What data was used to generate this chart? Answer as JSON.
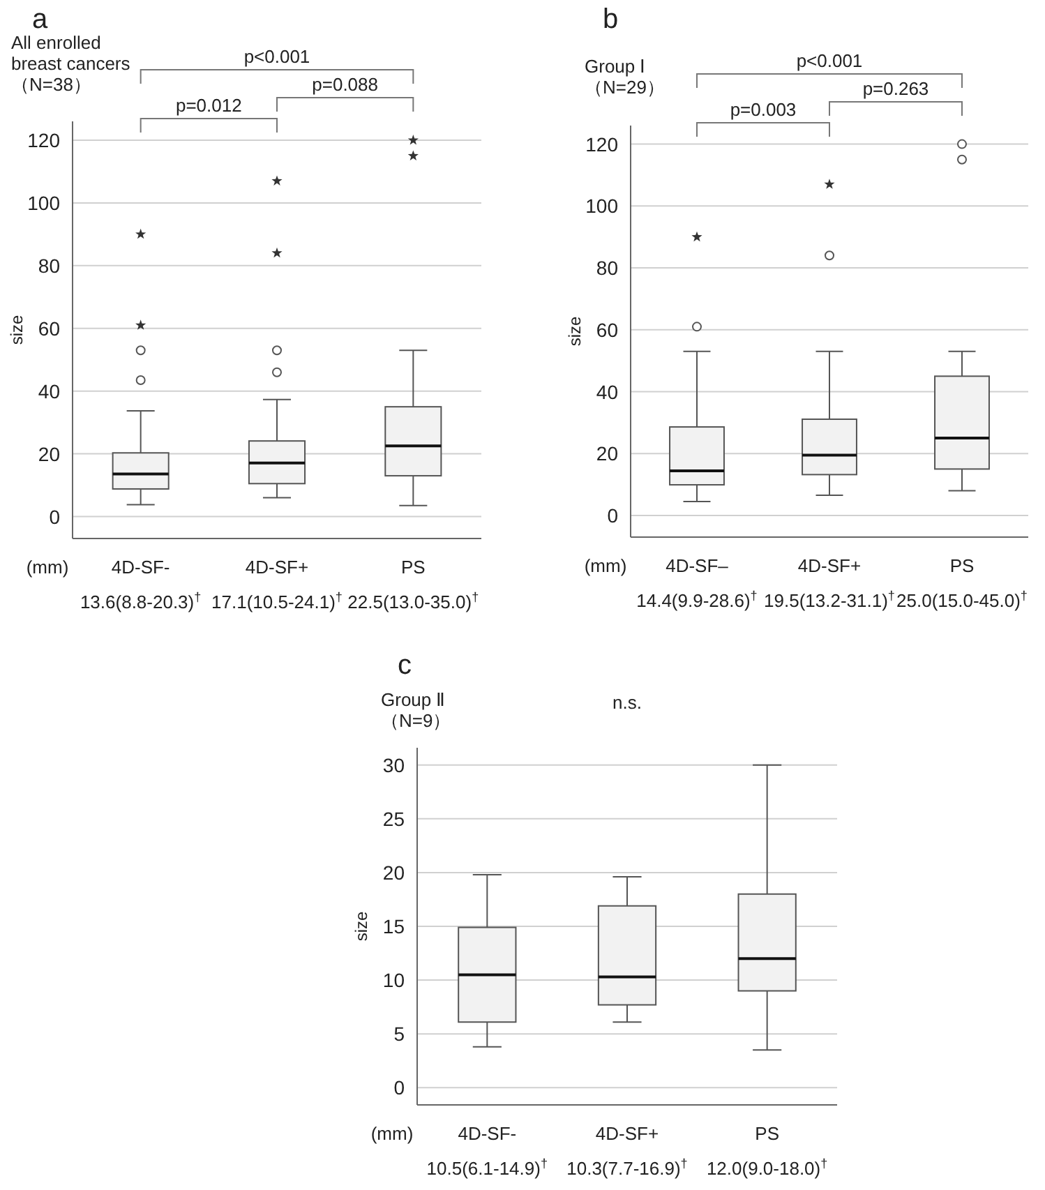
{
  "chart_data": [
    {
      "type": "box",
      "title": "a",
      "subtitle": "All enrolled\nbreast cancers\n（N=38）",
      "xlabel": "(mm)",
      "ylabel": "size",
      "categories": [
        "4D-SF-",
        "4D-SF+",
        "PS"
      ],
      "boxes": [
        {
          "low": 3.8,
          "q1": 8.8,
          "median": 13.6,
          "q3": 20.3,
          "high": 33.7,
          "outliers": [
            43.5,
            53
          ]
        },
        {
          "low": 6,
          "q1": 10.5,
          "median": 17.1,
          "q3": 24.1,
          "high": 37.3,
          "outliers": [
            46,
            53
          ]
        },
        {
          "low": 3.5,
          "q1": 13.0,
          "median": 22.5,
          "q3": 35.0,
          "high": 53
        }
      ],
      "series": [
        {
          "type": "scatter",
          "marker": "star",
          "color": "#333333",
          "x": [
            "4D-SF-",
            "4D-SF-",
            "4D-SF+",
            "4D-SF+",
            "PS",
            "PS"
          ],
          "values": [
            61,
            90,
            84,
            107,
            115,
            120
          ]
        }
      ],
      "ylim": [
        -7,
        126
      ],
      "yticks": [
        0,
        20,
        40,
        60,
        80,
        100,
        120
      ],
      "grid": "y",
      "annotations": [
        "p<0.001",
        "p=0.012",
        "p=0.088",
        "13.6(8.8-20.3)$^{†}$",
        "17.1(10.5-24.1)$^{†}$",
        "22.5(13.0-35.0)$^{†}$"
      ]
    },
    {
      "type": "box",
      "title": "b",
      "subtitle": "Group Ⅰ\n（N=29）",
      "xlabel": "(mm)",
      "ylabel": "size",
      "categories": [
        "4D-SF–",
        "4D-SF+",
        "PS"
      ],
      "boxes": [
        {
          "low": 4.5,
          "q1": 9.9,
          "median": 14.4,
          "q3": 28.6,
          "high": 53,
          "outliers": [
            61
          ]
        },
        {
          "low": 6.5,
          "q1": 13.2,
          "median": 19.5,
          "q3": 31.1,
          "high": 53,
          "outliers": [
            84
          ]
        },
        {
          "low": 8,
          "q1": 15.0,
          "median": 25.0,
          "q3": 45.0,
          "high": 53,
          "outliers": [
            115,
            120
          ]
        }
      ],
      "series": [
        {
          "type": "scatter",
          "marker": "star",
          "color": "#333333",
          "x": [
            "4D-SF–",
            "4D-SF+"
          ],
          "values": [
            90,
            107
          ]
        }
      ],
      "ylim": [
        -7,
        126
      ],
      "yticks": [
        0,
        20,
        40,
        60,
        80,
        100,
        120
      ],
      "grid": "y",
      "annotations": [
        "p<0.001",
        "p=0.003",
        "p=0.263",
        "14.4(9.9-28.6)$^{†}$",
        "19.5(13.2-31.1)$^{†}$",
        "25.0(15.0-45.0)$^{†}$"
      ]
    },
    {
      "type": "box",
      "title": "c",
      "subtitle": "Group Ⅱ\n（N=9）",
      "xlabel": "(mm)",
      "ylabel": "size",
      "categories": [
        "4D-SF-",
        "4D-SF+",
        "PS"
      ],
      "boxes": [
        {
          "low": 3.8,
          "q1": 6.1,
          "median": 10.5,
          "q3": 14.9,
          "high": 19.8
        },
        {
          "low": 6.1,
          "q1": 7.7,
          "median": 10.3,
          "q3": 16.9,
          "high": 19.6
        },
        {
          "low": 3.5,
          "q1": 9.0,
          "median": 12.0,
          "q3": 18.0,
          "high": 30
        }
      ],
      "ylim": [
        -1.6,
        31.6
      ],
      "yticks": [
        0,
        5,
        10,
        15,
        20,
        25,
        30
      ],
      "grid": "y",
      "annotations": [
        "n.s.",
        "10.5(6.1-14.9)$^{†}$",
        "10.3(7.7-16.9)$^{†}$",
        "12.0(9.0-18.0)$^{†}$"
      ]
    }
  ]
}
